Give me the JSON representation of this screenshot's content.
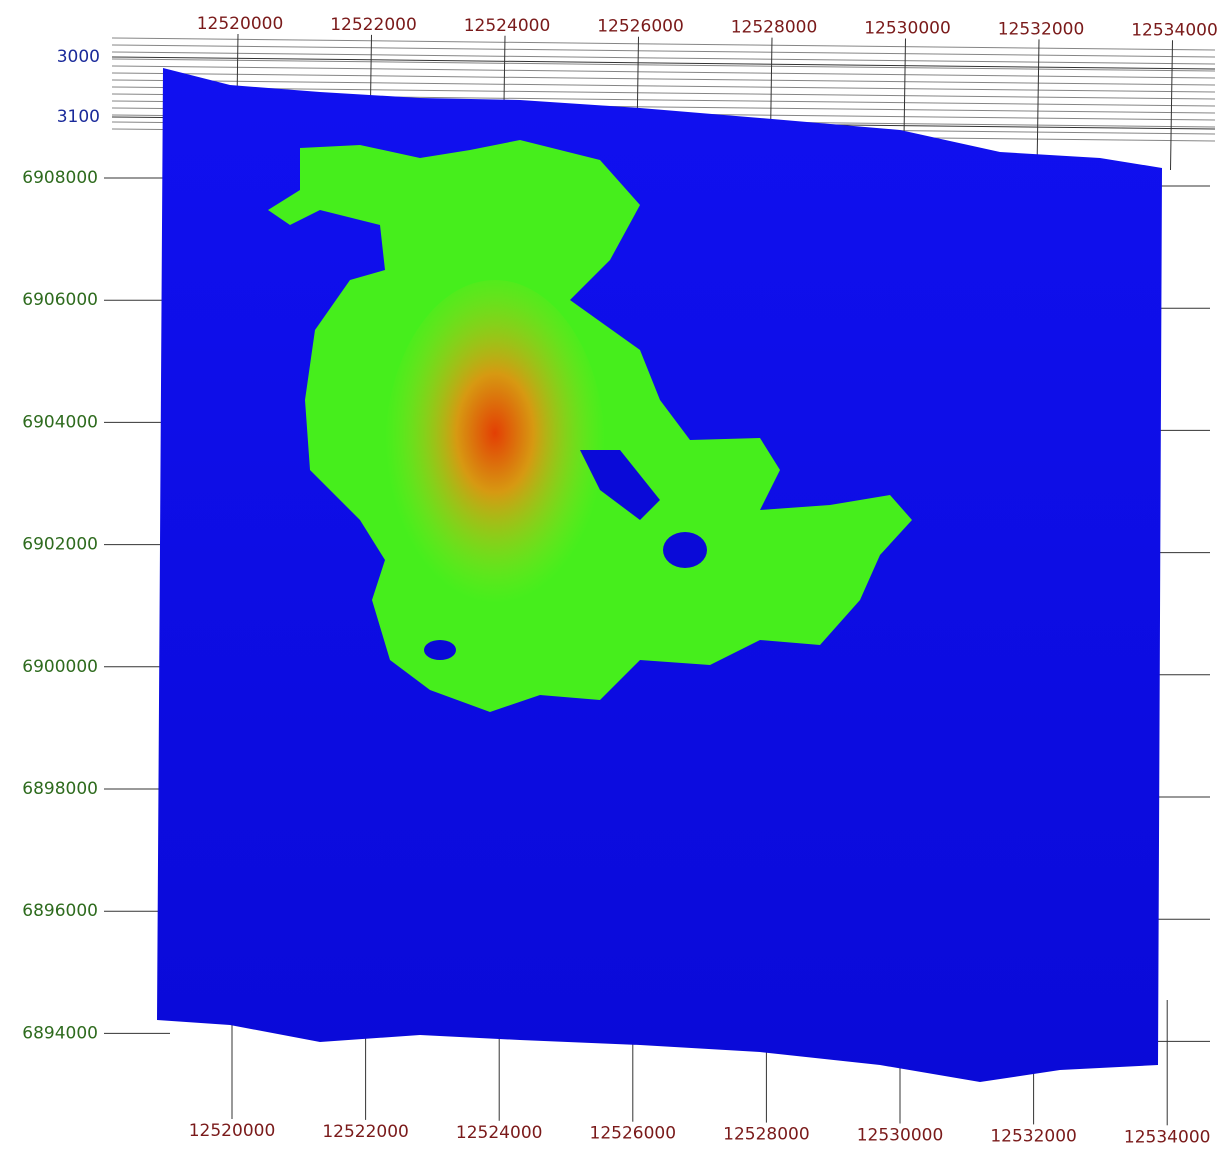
{
  "axes": {
    "x_top": {
      "ticks": [
        "12520000",
        "12522000",
        "12524000",
        "12526000",
        "12528000",
        "12530000",
        "12532000",
        "12534000"
      ]
    },
    "x_bottom": {
      "ticks": [
        "12520000",
        "12522000",
        "12524000",
        "12526000",
        "12528000",
        "12530000",
        "12532000",
        "12534000"
      ]
    },
    "y": {
      "ticks": [
        "6908000",
        "6906000",
        "6904000",
        "6902000",
        "6900000",
        "6898000",
        "6896000",
        "6894000"
      ]
    },
    "z": {
      "ticks": [
        "3000",
        "3100"
      ]
    }
  }
}
